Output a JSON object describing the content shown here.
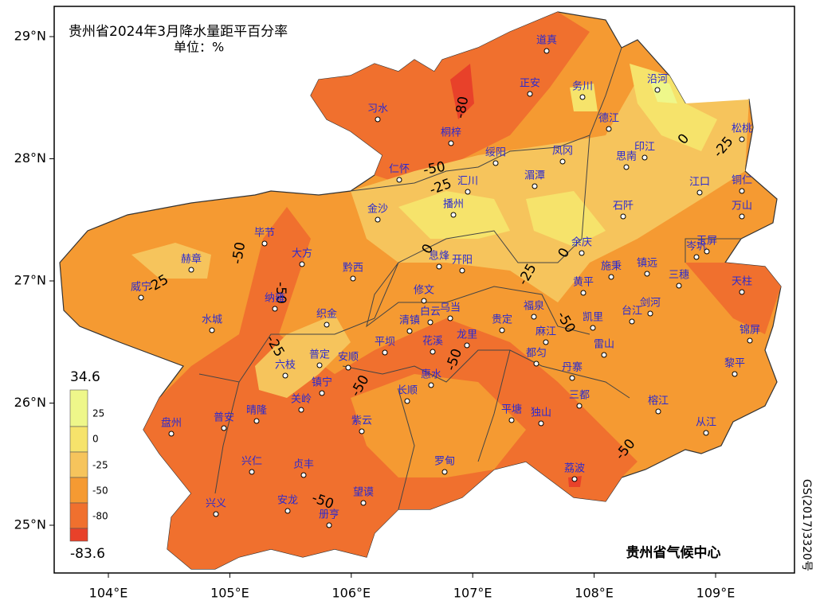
{
  "title": "贵州省2024年3月降水量距平百分率",
  "unit": "单位：%",
  "credit": "贵州省气候中心",
  "approval": "GS(2017)3320号",
  "lon_ticks": [
    {
      "value": 104,
      "label": "104°E"
    },
    {
      "value": 105,
      "label": "105°E"
    },
    {
      "value": 106,
      "label": "106°E"
    },
    {
      "value": 107,
      "label": "107°E"
    },
    {
      "value": 108,
      "label": "108°E"
    },
    {
      "value": 109,
      "label": "109°E"
    }
  ],
  "lat_ticks": [
    {
      "value": 29,
      "label": "29°N"
    },
    {
      "value": 28,
      "label": "28°N"
    },
    {
      "value": 27,
      "label": "27°N"
    },
    {
      "value": 26,
      "label": "26°N"
    },
    {
      "value": 25,
      "label": "25°N"
    }
  ],
  "legend": {
    "levels": [
      34.6,
      25,
      0,
      -25,
      -50,
      -80,
      -83.6
    ],
    "colors": [
      "#eef78a",
      "#f6e36b",
      "#f6c45c",
      "#f59a32",
      "#f0702e",
      "#e8412a"
    ]
  },
  "contour_labels": [
    "-80",
    "-50",
    "-25",
    "0",
    "-25",
    "-50",
    "-25",
    "0",
    "0",
    "-25",
    "-50",
    "-50",
    "-25",
    "-50",
    "-50",
    "-50",
    "-50"
  ],
  "stations": [
    "道真",
    "正安",
    "务川",
    "沿河",
    "习水",
    "桐梓",
    "德江",
    "松桃",
    "绥阳",
    "凤冈",
    "印江",
    "思南",
    "仁怀",
    "汇川",
    "湄潭",
    "江口",
    "铜仁",
    "播州",
    "石阡",
    "万山",
    "金沙",
    "毕节",
    "大方",
    "黔西",
    "息烽",
    "开阳",
    "余庆",
    "岑巩",
    "玉屏",
    "赫章",
    "施秉",
    "镇远",
    "三穗",
    "天柱",
    "威宁",
    "黄平",
    "修文",
    "纳雍",
    "织金",
    "白云",
    "乌当",
    "福泉",
    "凯里",
    "台江",
    "剑河",
    "清镇",
    "水城",
    "贵定",
    "锦屏",
    "麻江",
    "雷山",
    "花溪",
    "龙里",
    "平坝",
    "都匀",
    "普定",
    "安顺",
    "六枝",
    "丹寨",
    "惠水",
    "黎平",
    "镇宁",
    "长顺",
    "关岭",
    "三都",
    "晴隆",
    "普安",
    "盘州",
    "紫云",
    "平塘",
    "独山",
    "榕江",
    "从江",
    "兴仁",
    "贞丰",
    "罗甸",
    "荔波",
    "望谟",
    "安龙",
    "兴义",
    "册亨"
  ]
}
